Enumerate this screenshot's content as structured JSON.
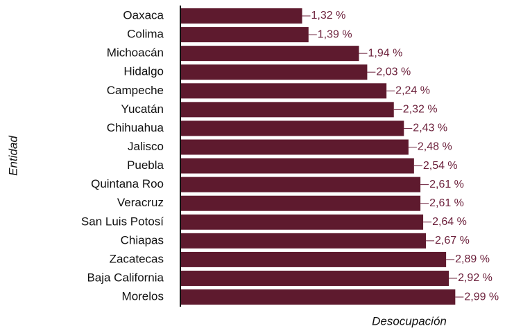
{
  "chart_data": {
    "type": "barh",
    "categories": [
      "Oaxaca",
      "Colima",
      "Michoacán",
      "Hidalgo",
      "Campeche",
      "Yucatán",
      "Chihuahua",
      "Jalisco",
      "Puebla",
      "Quintana Roo",
      "Veracruz",
      "San Luis Potosí",
      "Chiapas",
      "Zacatecas",
      "Baja California",
      "Morelos"
    ],
    "values": [
      1.32,
      1.39,
      1.94,
      2.03,
      2.24,
      2.32,
      2.43,
      2.48,
      2.54,
      2.61,
      2.61,
      2.64,
      2.67,
      2.89,
      2.92,
      2.99
    ],
    "value_labels": [
      "1,32 %",
      "1,39 %",
      "1,94 %",
      "2,03 %",
      "2,24 %",
      "2,32 %",
      "2,43 %",
      "2,48 %",
      "2,54 %",
      "2,61 %",
      "2,61 %",
      "2,64 %",
      "2,67 %",
      "2,89 %",
      "2,92 %",
      "2,99 %"
    ],
    "color": "#5e1a2e",
    "label_color": "#6b1f3a",
    "xlim": [
      0,
      3.6
    ],
    "xlabel": "Desocupación",
    "ylabel": "Entidad"
  }
}
